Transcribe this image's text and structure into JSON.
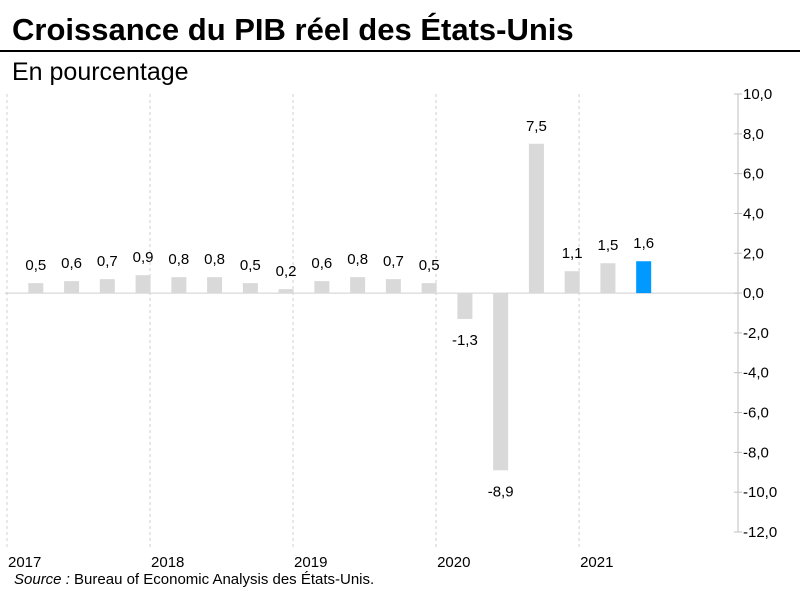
{
  "title": "Croissance du PIB réel des États-Unis",
  "subtitle": "En pourcentage",
  "source": {
    "label": "Source :",
    "text": "Bureau of Economic Analysis des États-Unis."
  },
  "colors": {
    "bar": "#d9d9d9",
    "highlight": "#0099ff",
    "grid": "#d0d0d0",
    "axis": "#000000"
  },
  "chart_data": {
    "type": "bar",
    "title": "Croissance du PIB réel des États-Unis",
    "ylabel": "",
    "xlabel": "",
    "ylim": [
      -12,
      10
    ],
    "yticks": [
      10,
      8,
      6,
      4,
      2,
      0,
      -2,
      -4,
      -6,
      -8,
      -10,
      -12
    ],
    "ytick_labels": [
      "10,0",
      "8,0",
      "6,0",
      "4,0",
      "2,0",
      "0,0",
      "-2,0",
      "-4,0",
      "-6,0",
      "-8,0",
      "-10,0",
      "-12,0"
    ],
    "y_axis_position": "right",
    "grid": "vertical dashed lines at year boundaries",
    "years": [
      "2017",
      "2018",
      "2019",
      "2020",
      "2021"
    ],
    "values": [
      0.5,
      0.6,
      0.7,
      0.9,
      0.8,
      0.8,
      0.5,
      0.2,
      0.6,
      0.8,
      0.7,
      0.5,
      -1.3,
      -8.9,
      7.5,
      1.1,
      1.5,
      1.6
    ],
    "data_labels": [
      "0,5",
      "0,6",
      "0,7",
      "0,9",
      "0,8",
      "0,8",
      "0,5",
      "0,2",
      "0,6",
      "0,8",
      "0,7",
      "0,5",
      "-1,3",
      "-8,9",
      "7,5",
      "1,1",
      "1,5",
      "1,6"
    ],
    "highlight_index": 17
  }
}
